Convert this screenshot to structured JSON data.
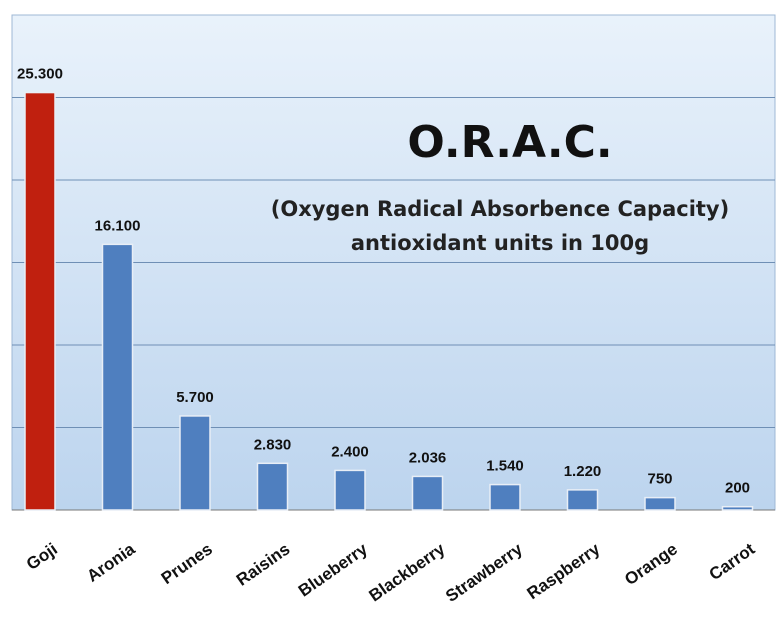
{
  "chart_data": {
    "type": "bar",
    "title": "O.R.A.C.",
    "subtitle": [
      "(Oxygen Radical Absorbence Capacity)",
      "antioxidant units in 100g"
    ],
    "categories": [
      "Goji",
      "Aronia",
      "Prunes",
      "Raisins",
      "Blueberry",
      "Blackberry",
      "Strawberry",
      "Raspberry",
      "Orange",
      "Carrot"
    ],
    "values": [
      25300,
      16100,
      5700,
      2830,
      2400,
      2036,
      1540,
      1220,
      750,
      200
    ],
    "value_labels": [
      "25.300",
      "16.100",
      "5.700",
      "2.830",
      "2.400",
      "2.036",
      "1.540",
      "1.220",
      "750",
      "200"
    ],
    "colors": [
      "#c0200f",
      "#4f7fbf",
      "#4f7fbf",
      "#4f7fbf",
      "#4f7fbf",
      "#4f7fbf",
      "#4f7fbf",
      "#4f7fbf",
      "#4f7fbf",
      "#4f7fbf"
    ],
    "ylim": [
      0,
      30000
    ],
    "yticks": [
      5000,
      10000,
      15000,
      20000,
      25000
    ],
    "grid": true
  }
}
